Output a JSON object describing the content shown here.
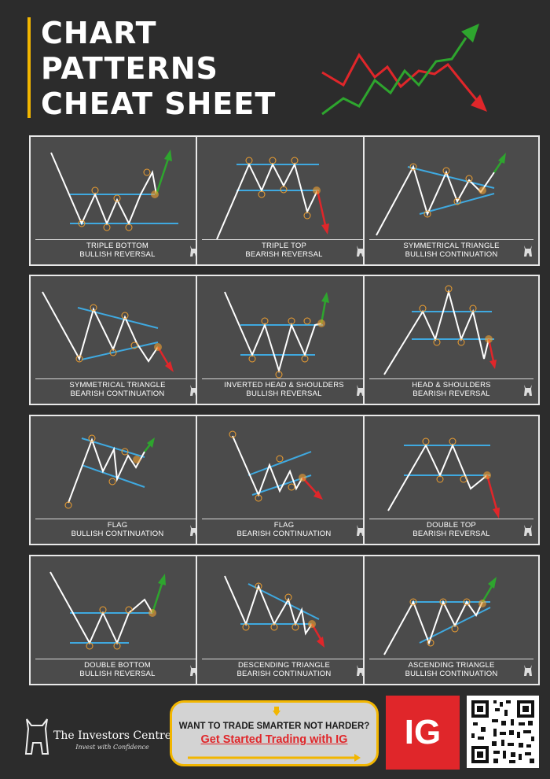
{
  "header": {
    "title_lines": [
      "CHART",
      "PATTERNS",
      "CHEAT SHEET"
    ]
  },
  "cards": [
    {
      "line1": "TRIPLE BOTTOM",
      "line2": "BULLISH REVERSAL"
    },
    {
      "line1": "TRIPLE TOP",
      "line2": "BEARISH REVERSAL"
    },
    {
      "line1": "SYMMETRICAL TRIANGLE",
      "line2": "BULLISH CONTINUATION"
    },
    {
      "line1": "SYMMETRICAL TRIANGLE",
      "line2": "BEARISH CONTINUATION"
    },
    {
      "line1": "INVERTED HEAD & SHOULDERS",
      "line2": "BULLISH REVERSAL"
    },
    {
      "line1": "HEAD & SHOULDERS",
      "line2": "BEARISH REVERSAL"
    },
    {
      "line1": "FLAG",
      "line2": "BULLISH CONTINUATION"
    },
    {
      "line1": "FLAG",
      "line2": "BEARISH CONTINUATION"
    },
    {
      "line1": "DOUBLE TOP",
      "line2": "BEARISH REVERSAL"
    },
    {
      "line1": "DOUBLE BOTTOM",
      "line2": "BULLISH REVERSAL"
    },
    {
      "line1": "DESCENDING TRIANGLE",
      "line2": "BEARISH CONTINUATION"
    },
    {
      "line1": "ASCENDING TRIANGLE",
      "line2": "BULLISH CONTINUATION"
    }
  ],
  "footer": {
    "brand_name": "The Investors Centre",
    "brand_tagline": "Invest with Confidence",
    "cta_question": "WANT TO TRADE SMARTER NOT HARDER?",
    "cta_link": "Get Started Trading with IG",
    "ig_logo": "IG"
  },
  "colors": {
    "background": "#2c2c2c",
    "accent": "#f2b600",
    "bullish": "#2ea52e",
    "bearish": "#e0262a",
    "trendline": "#3fa9e0",
    "marker": "#f0a030",
    "ig_red": "#e0262a"
  },
  "icons": [
    "bull-icon",
    "qr-code"
  ]
}
